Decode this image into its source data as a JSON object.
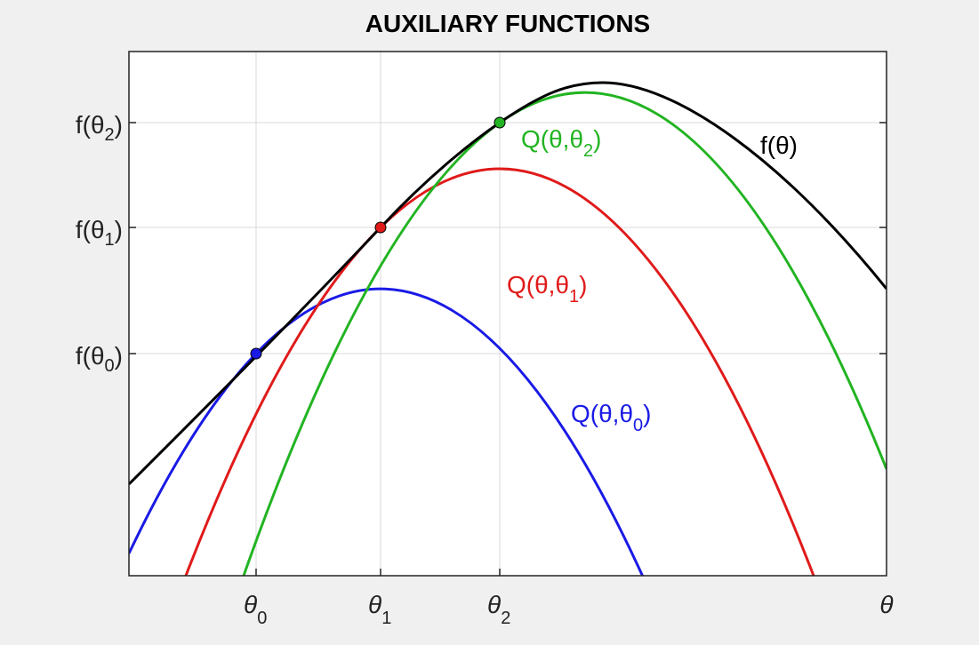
{
  "title": "AUXILIARY FUNCTIONS",
  "y_ticks": [
    {
      "base": "f(θ",
      "sub": "0",
      "end": ")"
    },
    {
      "base": "f(θ",
      "sub": "1",
      "end": ")"
    },
    {
      "base": "f(θ",
      "sub": "2",
      "end": ")"
    }
  ],
  "x_ticks": [
    {
      "base": "θ",
      "sub": "0"
    },
    {
      "base": "θ",
      "sub": "1"
    },
    {
      "base": "θ",
      "sub": "2"
    }
  ],
  "x_axis_label": "θ",
  "curve_labels": {
    "f": {
      "base": "f(θ)"
    },
    "q0": {
      "base": "Q(θ,θ",
      "sub": "0",
      "end": ")"
    },
    "q1": {
      "base": "Q(θ,θ",
      "sub": "1",
      "end": ")"
    },
    "q2": {
      "base": "Q(θ,θ",
      "sub": "2",
      "end": ")"
    }
  }
}
